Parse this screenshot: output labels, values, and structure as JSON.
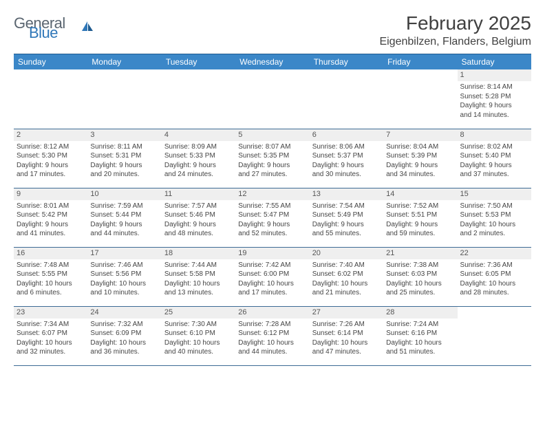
{
  "brand": {
    "general": "General",
    "blue": "Blue"
  },
  "title": {
    "month": "February 2025",
    "location": "Eigenbilzen, Flanders, Belgium"
  },
  "colors": {
    "header_bg": "#3b87c8",
    "header_text": "#ffffff",
    "daynum_bg": "#efefef",
    "border": "#3b6a94",
    "brand_gray": "#5a6570",
    "brand_blue": "#2f77b8"
  },
  "weekdays": [
    "Sunday",
    "Monday",
    "Tuesday",
    "Wednesday",
    "Thursday",
    "Friday",
    "Saturday"
  ],
  "weeks": [
    [
      null,
      null,
      null,
      null,
      null,
      null,
      {
        "n": "1",
        "sunrise": "Sunrise: 8:14 AM",
        "sunset": "Sunset: 5:28 PM",
        "day1": "Daylight: 9 hours",
        "day2": "and 14 minutes."
      }
    ],
    [
      {
        "n": "2",
        "sunrise": "Sunrise: 8:12 AM",
        "sunset": "Sunset: 5:30 PM",
        "day1": "Daylight: 9 hours",
        "day2": "and 17 minutes."
      },
      {
        "n": "3",
        "sunrise": "Sunrise: 8:11 AM",
        "sunset": "Sunset: 5:31 PM",
        "day1": "Daylight: 9 hours",
        "day2": "and 20 minutes."
      },
      {
        "n": "4",
        "sunrise": "Sunrise: 8:09 AM",
        "sunset": "Sunset: 5:33 PM",
        "day1": "Daylight: 9 hours",
        "day2": "and 24 minutes."
      },
      {
        "n": "5",
        "sunrise": "Sunrise: 8:07 AM",
        "sunset": "Sunset: 5:35 PM",
        "day1": "Daylight: 9 hours",
        "day2": "and 27 minutes."
      },
      {
        "n": "6",
        "sunrise": "Sunrise: 8:06 AM",
        "sunset": "Sunset: 5:37 PM",
        "day1": "Daylight: 9 hours",
        "day2": "and 30 minutes."
      },
      {
        "n": "7",
        "sunrise": "Sunrise: 8:04 AM",
        "sunset": "Sunset: 5:39 PM",
        "day1": "Daylight: 9 hours",
        "day2": "and 34 minutes."
      },
      {
        "n": "8",
        "sunrise": "Sunrise: 8:02 AM",
        "sunset": "Sunset: 5:40 PM",
        "day1": "Daylight: 9 hours",
        "day2": "and 37 minutes."
      }
    ],
    [
      {
        "n": "9",
        "sunrise": "Sunrise: 8:01 AM",
        "sunset": "Sunset: 5:42 PM",
        "day1": "Daylight: 9 hours",
        "day2": "and 41 minutes."
      },
      {
        "n": "10",
        "sunrise": "Sunrise: 7:59 AM",
        "sunset": "Sunset: 5:44 PM",
        "day1": "Daylight: 9 hours",
        "day2": "and 44 minutes."
      },
      {
        "n": "11",
        "sunrise": "Sunrise: 7:57 AM",
        "sunset": "Sunset: 5:46 PM",
        "day1": "Daylight: 9 hours",
        "day2": "and 48 minutes."
      },
      {
        "n": "12",
        "sunrise": "Sunrise: 7:55 AM",
        "sunset": "Sunset: 5:47 PM",
        "day1": "Daylight: 9 hours",
        "day2": "and 52 minutes."
      },
      {
        "n": "13",
        "sunrise": "Sunrise: 7:54 AM",
        "sunset": "Sunset: 5:49 PM",
        "day1": "Daylight: 9 hours",
        "day2": "and 55 minutes."
      },
      {
        "n": "14",
        "sunrise": "Sunrise: 7:52 AM",
        "sunset": "Sunset: 5:51 PM",
        "day1": "Daylight: 9 hours",
        "day2": "and 59 minutes."
      },
      {
        "n": "15",
        "sunrise": "Sunrise: 7:50 AM",
        "sunset": "Sunset: 5:53 PM",
        "day1": "Daylight: 10 hours",
        "day2": "and 2 minutes."
      }
    ],
    [
      {
        "n": "16",
        "sunrise": "Sunrise: 7:48 AM",
        "sunset": "Sunset: 5:55 PM",
        "day1": "Daylight: 10 hours",
        "day2": "and 6 minutes."
      },
      {
        "n": "17",
        "sunrise": "Sunrise: 7:46 AM",
        "sunset": "Sunset: 5:56 PM",
        "day1": "Daylight: 10 hours",
        "day2": "and 10 minutes."
      },
      {
        "n": "18",
        "sunrise": "Sunrise: 7:44 AM",
        "sunset": "Sunset: 5:58 PM",
        "day1": "Daylight: 10 hours",
        "day2": "and 13 minutes."
      },
      {
        "n": "19",
        "sunrise": "Sunrise: 7:42 AM",
        "sunset": "Sunset: 6:00 PM",
        "day1": "Daylight: 10 hours",
        "day2": "and 17 minutes."
      },
      {
        "n": "20",
        "sunrise": "Sunrise: 7:40 AM",
        "sunset": "Sunset: 6:02 PM",
        "day1": "Daylight: 10 hours",
        "day2": "and 21 minutes."
      },
      {
        "n": "21",
        "sunrise": "Sunrise: 7:38 AM",
        "sunset": "Sunset: 6:03 PM",
        "day1": "Daylight: 10 hours",
        "day2": "and 25 minutes."
      },
      {
        "n": "22",
        "sunrise": "Sunrise: 7:36 AM",
        "sunset": "Sunset: 6:05 PM",
        "day1": "Daylight: 10 hours",
        "day2": "and 28 minutes."
      }
    ],
    [
      {
        "n": "23",
        "sunrise": "Sunrise: 7:34 AM",
        "sunset": "Sunset: 6:07 PM",
        "day1": "Daylight: 10 hours",
        "day2": "and 32 minutes."
      },
      {
        "n": "24",
        "sunrise": "Sunrise: 7:32 AM",
        "sunset": "Sunset: 6:09 PM",
        "day1": "Daylight: 10 hours",
        "day2": "and 36 minutes."
      },
      {
        "n": "25",
        "sunrise": "Sunrise: 7:30 AM",
        "sunset": "Sunset: 6:10 PM",
        "day1": "Daylight: 10 hours",
        "day2": "and 40 minutes."
      },
      {
        "n": "26",
        "sunrise": "Sunrise: 7:28 AM",
        "sunset": "Sunset: 6:12 PM",
        "day1": "Daylight: 10 hours",
        "day2": "and 44 minutes."
      },
      {
        "n": "27",
        "sunrise": "Sunrise: 7:26 AM",
        "sunset": "Sunset: 6:14 PM",
        "day1": "Daylight: 10 hours",
        "day2": "and 47 minutes."
      },
      {
        "n": "28",
        "sunrise": "Sunrise: 7:24 AM",
        "sunset": "Sunset: 6:16 PM",
        "day1": "Daylight: 10 hours",
        "day2": "and 51 minutes."
      },
      null
    ]
  ]
}
